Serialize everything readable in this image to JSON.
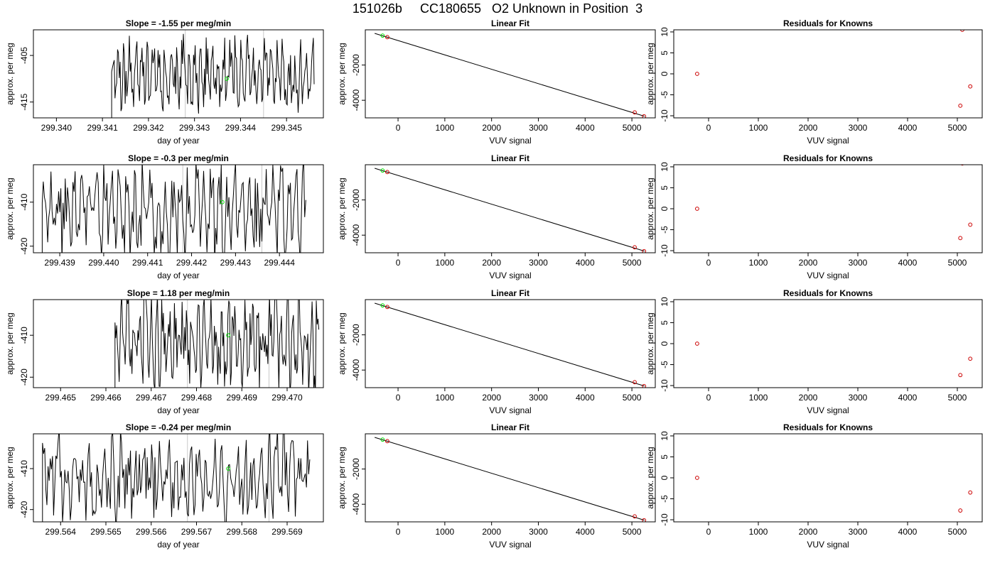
{
  "figure": {
    "title": "151026b     CC180655   O2 Unknown in Position  3"
  },
  "chart_data": [
    {
      "type": "line",
      "title": "Slope =  -1.55  per meg/min",
      "xlabel": "day of year",
      "ylabel": "approx. per meg",
      "xlim": [
        299.3395,
        299.3458
      ],
      "ylim": [
        -418.4,
        -399.5
      ],
      "xticks": [
        299.34,
        299.341,
        299.342,
        299.343,
        299.344,
        299.345
      ],
      "xtick_labels": [
        "299.340",
        "299.341",
        "299.342",
        "299.343",
        "299.344",
        "299.345"
      ],
      "yticks": [
        -405,
        -415
      ],
      "ytick_labels": [
        "-405",
        "-415"
      ],
      "vlines": [
        299.3428,
        299.3445
      ],
      "start": 299.3412,
      "end": 299.3456,
      "seed": 11,
      "mean": -409,
      "amp": 6,
      "marker": {
        "x": 299.3437,
        "y": -410.0
      },
      "line_color": "#000000",
      "vline_color": "#c8c8c8",
      "marker_color": "#00dd00"
    },
    {
      "type": "scatter",
      "title": "Linear Fit",
      "xlabel": "VUV signal",
      "ylabel": "approx. per meg",
      "xlim": [
        -700,
        5500
      ],
      "ylim": [
        -5000,
        0
      ],
      "xticks": [
        0,
        1000,
        2000,
        3000,
        4000,
        5000
      ],
      "yticks": [
        -2000,
        -4000
      ],
      "fit_line": {
        "x": [
          -500,
          5270
        ],
        "y": [
          -200,
          -4910
        ]
      },
      "points": [
        {
          "x": -230,
          "y": -415
        },
        {
          "x": 5060,
          "y": -4690
        },
        {
          "x": 5260,
          "y": -4910
        }
      ],
      "unknown": {
        "x": -330,
        "y": -330
      },
      "point_color": "#cc0000",
      "unknown_color": "#00dd00"
    },
    {
      "type": "scatter",
      "title": "Residuals for Knowns",
      "xlabel": "VUV signal",
      "ylabel": "approx. per meg",
      "xlim": [
        -700,
        5500
      ],
      "ylim": [
        -10.5,
        10.5
      ],
      "xticks": [
        0,
        1000,
        2000,
        3000,
        4000,
        5000
      ],
      "yticks": [
        10,
        5,
        0,
        -5,
        -10
      ],
      "points": [
        {
          "x": -230,
          "y": 0
        },
        {
          "x": 5060,
          "y": -7.6
        },
        {
          "x": 5100,
          "y": 10.5
        },
        {
          "x": 5260,
          "y": -3.0
        }
      ],
      "point_color": "#cc0000"
    },
    {
      "type": "line",
      "title": "Slope =  -0.3  per meg/min",
      "xlabel": "day of year",
      "ylabel": "approx. per meg",
      "xlim": [
        299.4384,
        299.445
      ],
      "ylim": [
        -421.5,
        -401.5
      ],
      "xticks": [
        299.439,
        299.44,
        299.441,
        299.442,
        299.443,
        299.444
      ],
      "xtick_labels": [
        "299.439",
        "299.440",
        "299.441",
        "299.442",
        "299.443",
        "299.444"
      ],
      "yticks": [
        -410,
        -420
      ],
      "ytick_labels": [
        "-410",
        "-420"
      ],
      "vlines": [
        299.4418,
        299.4436
      ],
      "start": 299.4386,
      "end": 299.4446,
      "seed": 23,
      "mean": -412,
      "amp": 9,
      "marker": {
        "x": 299.4427,
        "y": -410.0
      },
      "line_color": "#000000",
      "vline_color": "#c8c8c8",
      "marker_color": "#00dd00"
    },
    {
      "type": "scatter",
      "title": "Linear Fit",
      "xlabel": "VUV signal",
      "ylabel": "approx. per meg",
      "xlim": [
        -700,
        5500
      ],
      "ylim": [
        -5000,
        0
      ],
      "xticks": [
        0,
        1000,
        2000,
        3000,
        4000,
        5000
      ],
      "yticks": [
        -2000,
        -4000
      ],
      "fit_line": {
        "x": [
          -500,
          5270
        ],
        "y": [
          -200,
          -4910
        ]
      },
      "points": [
        {
          "x": -230,
          "y": -415
        },
        {
          "x": 5060,
          "y": -4690
        },
        {
          "x": 5260,
          "y": -4910
        }
      ],
      "unknown": {
        "x": -330,
        "y": -330
      },
      "point_color": "#cc0000",
      "unknown_color": "#00dd00"
    },
    {
      "type": "scatter",
      "title": "Residuals for Knowns",
      "xlabel": "VUV signal",
      "ylabel": "approx. per meg",
      "xlim": [
        -700,
        5500
      ],
      "ylim": [
        -10.5,
        10.5
      ],
      "xticks": [
        0,
        1000,
        2000,
        3000,
        4000,
        5000
      ],
      "yticks": [
        10,
        5,
        0,
        -5,
        -10
      ],
      "points": [
        {
          "x": -230,
          "y": 0
        },
        {
          "x": 5060,
          "y": -7.0
        },
        {
          "x": 5100,
          "y": 10.8
        },
        {
          "x": 5260,
          "y": -3.8
        }
      ],
      "point_color": "#cc0000"
    },
    {
      "type": "line",
      "title": "Slope =  1.18  per meg/min",
      "xlabel": "day of year",
      "ylabel": "approx. per meg",
      "xlim": [
        299.4644,
        299.4708
      ],
      "ylim": [
        -422.5,
        -401.5
      ],
      "xticks": [
        299.465,
        299.466,
        299.467,
        299.468,
        299.469,
        299.47
      ],
      "xtick_labels": [
        "299.465",
        "299.466",
        "299.467",
        "299.468",
        "299.469",
        "299.470"
      ],
      "yticks": [
        -410,
        -420
      ],
      "ytick_labels": [
        "-410",
        "-420"
      ],
      "vlines": [
        299.4678,
        299.4696
      ],
      "start": 299.4662,
      "end": 299.4707,
      "seed": 37,
      "mean": -412,
      "amp": 9,
      "marker": {
        "x": 299.4687,
        "y": -410.0
      },
      "line_color": "#000000",
      "vline_color": "#c8c8c8",
      "marker_color": "#00dd00"
    },
    {
      "type": "scatter",
      "title": "Linear Fit",
      "xlabel": "VUV signal",
      "ylabel": "approx. per meg",
      "xlim": [
        -700,
        5500
      ],
      "ylim": [
        -5000,
        0
      ],
      "xticks": [
        0,
        1000,
        2000,
        3000,
        4000,
        5000
      ],
      "yticks": [
        -2000,
        -4000
      ],
      "fit_line": {
        "x": [
          -500,
          5270
        ],
        "y": [
          -200,
          -4910
        ]
      },
      "points": [
        {
          "x": -230,
          "y": -415
        },
        {
          "x": 5060,
          "y": -4690
        },
        {
          "x": 5260,
          "y": -4910
        }
      ],
      "unknown": {
        "x": -330,
        "y": -330
      },
      "point_color": "#cc0000",
      "unknown_color": "#00dd00"
    },
    {
      "type": "scatter",
      "title": "Residuals for Knowns",
      "xlabel": "VUV signal",
      "ylabel": "approx. per meg",
      "xlim": [
        -700,
        5500
      ],
      "ylim": [
        -10.5,
        10.5
      ],
      "xticks": [
        0,
        1000,
        2000,
        3000,
        4000,
        5000
      ],
      "yticks": [
        10,
        5,
        0,
        -5,
        -10
      ],
      "points": [
        {
          "x": -230,
          "y": 0
        },
        {
          "x": 5060,
          "y": -7.5
        },
        {
          "x": 5260,
          "y": -3.6
        }
      ],
      "point_color": "#cc0000"
    },
    {
      "type": "line",
      "title": "Slope =  -0.24  per meg/min",
      "xlabel": "day of year",
      "ylabel": "approx. per meg",
      "xlim": [
        299.5634,
        299.5698
      ],
      "ylim": [
        -423.0,
        -401.5
      ],
      "xticks": [
        299.564,
        299.565,
        299.566,
        299.567,
        299.568,
        299.569
      ],
      "xtick_labels": [
        "299.564",
        "299.565",
        "299.566",
        "299.567",
        "299.568",
        "299.569"
      ],
      "yticks": [
        -410,
        -420
      ],
      "ytick_labels": [
        "-410",
        "-420"
      ],
      "vlines": [
        299.5668,
        299.5686
      ],
      "start": 299.5636,
      "end": 299.5695,
      "seed": 51,
      "mean": -412,
      "amp": 9,
      "marker": {
        "x": 299.5677,
        "y": -410.0
      },
      "line_color": "#000000",
      "vline_color": "#c8c8c8",
      "marker_color": "#00dd00"
    },
    {
      "type": "scatter",
      "title": "Linear Fit",
      "xlabel": "VUV signal",
      "ylabel": "approx. per meg",
      "xlim": [
        -700,
        5500
      ],
      "ylim": [
        -5000,
        0
      ],
      "xticks": [
        0,
        1000,
        2000,
        3000,
        4000,
        5000
      ],
      "yticks": [
        -2000,
        -4000
      ],
      "fit_line": {
        "x": [
          -500,
          5270
        ],
        "y": [
          -200,
          -4910
        ]
      },
      "points": [
        {
          "x": -230,
          "y": -415
        },
        {
          "x": 5060,
          "y": -4690
        },
        {
          "x": 5260,
          "y": -4910
        }
      ],
      "unknown": {
        "x": -330,
        "y": -330
      },
      "point_color": "#cc0000",
      "unknown_color": "#00dd00"
    },
    {
      "type": "scatter",
      "title": "Residuals for Knowns",
      "xlabel": "VUV signal",
      "ylabel": "approx. per meg",
      "xlim": [
        -700,
        5500
      ],
      "ylim": [
        -10.5,
        10.5
      ],
      "xticks": [
        0,
        1000,
        2000,
        3000,
        4000,
        5000
      ],
      "yticks": [
        10,
        5,
        0,
        -5,
        -10
      ],
      "points": [
        {
          "x": -230,
          "y": 0
        },
        {
          "x": 5060,
          "y": -7.8
        },
        {
          "x": 5260,
          "y": -3.5
        }
      ],
      "point_color": "#cc0000"
    }
  ]
}
